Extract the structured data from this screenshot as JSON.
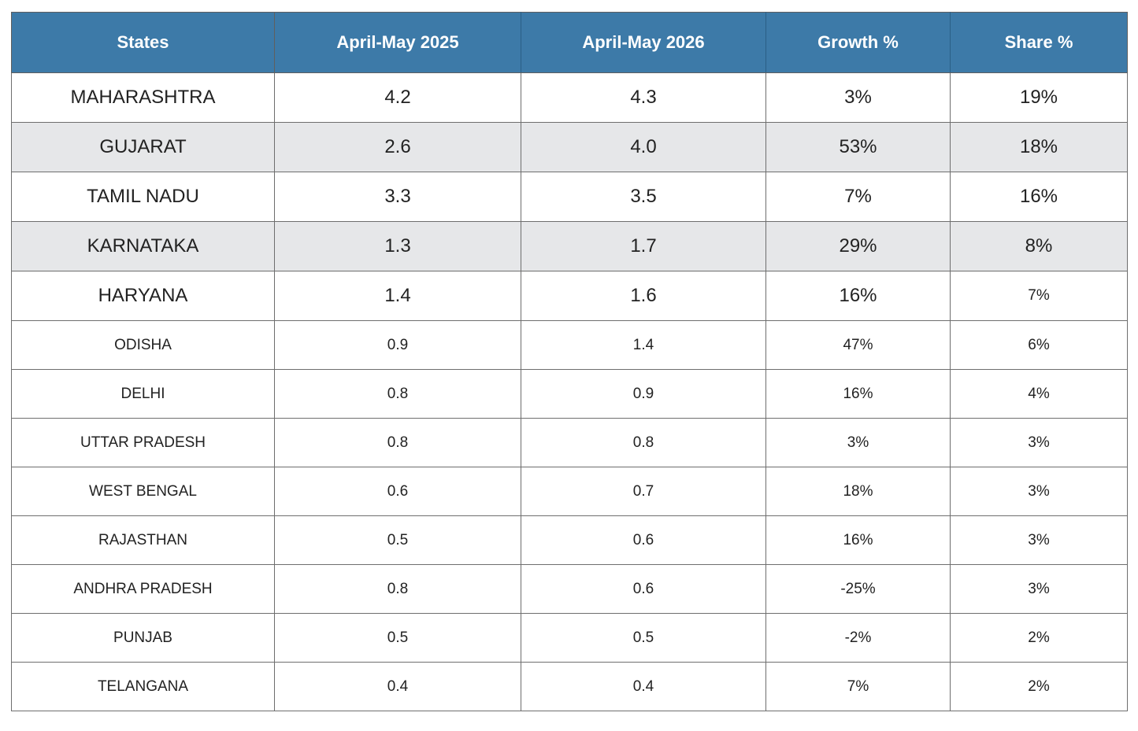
{
  "table": {
    "headers": [
      "States",
      "April-May 2025",
      "April-May 2026",
      "Growth %",
      "Share %"
    ],
    "rows": [
      [
        "MAHARASHTRA",
        "4.2",
        "4.3",
        "3%",
        "19%"
      ],
      [
        "GUJARAT",
        "2.6",
        "4.0",
        "53%",
        "18%"
      ],
      [
        "TAMIL NADU",
        "3.3",
        "3.5",
        "7%",
        "16%"
      ],
      [
        "KARNATAKA",
        "1.3",
        "1.7",
        "29%",
        "8%"
      ],
      [
        "HARYANA",
        "1.4",
        "1.6",
        "16%",
        "7%"
      ],
      [
        "ODISHA",
        "0.9",
        "1.4",
        "47%",
        "6%"
      ],
      [
        "DELHI",
        "0.8",
        "0.9",
        "16%",
        "4%"
      ],
      [
        "UTTAR PRADESH",
        "0.8",
        "0.8",
        "3%",
        "3%"
      ],
      [
        "WEST BENGAL",
        "0.6",
        "0.7",
        "18%",
        "3%"
      ],
      [
        "RAJASTHAN",
        "0.5",
        "0.6",
        "16%",
        "3%"
      ],
      [
        "ANDHRA PRADESH",
        "0.8",
        "0.6",
        "-25%",
        "3%"
      ],
      [
        "PUNJAB",
        "0.5",
        "0.5",
        "-2%",
        "2%"
      ],
      [
        "TELANGANA",
        "0.4",
        "0.4",
        "7%",
        "2%"
      ]
    ]
  },
  "colors": {
    "header_bg": "#3d7aa8",
    "header_text": "#ffffff",
    "shaded_row_bg": "#e6e7e9",
    "border": "#6e6e6e"
  }
}
